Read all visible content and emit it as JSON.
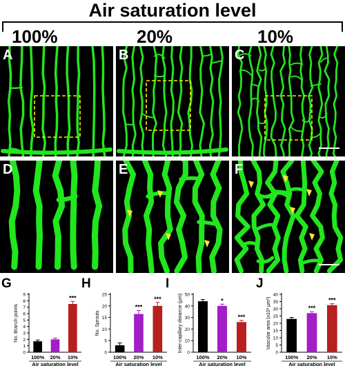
{
  "figure": {
    "title": "Air saturation level",
    "columns": [
      "100%",
      "20%",
      "10%"
    ],
    "image_panels": [
      "A",
      "B",
      "C",
      "D",
      "E",
      "F"
    ]
  },
  "colors": {
    "vessel": "#22e61e",
    "roi_box": "#ffee00",
    "arrowhead": "#ffe633",
    "bar_100": "#000000",
    "bar_20": "#a21ec6",
    "bar_10": "#b82020"
  },
  "chart_data": [
    {
      "panel": "G",
      "type": "bar",
      "categories": [
        "100%",
        "20%",
        "10%"
      ],
      "values": [
        1.7,
        2.0,
        7.5
      ],
      "errors": [
        0.2,
        0.2,
        0.4
      ],
      "significance": [
        "",
        "",
        "***"
      ],
      "ylabel": "No. Branch points",
      "xlabel": "Air saturation level",
      "ylim": [
        0,
        9
      ],
      "yticks": [
        0,
        1,
        2,
        3,
        4,
        5,
        6,
        7,
        8,
        9
      ]
    },
    {
      "panel": "H",
      "type": "bar",
      "categories": [
        "100%",
        "20%",
        "10%"
      ],
      "values": [
        3.0,
        16.5,
        20.0
      ],
      "errors": [
        1.0,
        1.5,
        1.5
      ],
      "significance": [
        "",
        "***",
        "***"
      ],
      "ylabel": "No. Sprouts",
      "xlabel": "Air saturation level",
      "ylim": [
        0,
        25
      ],
      "yticks": [
        0,
        5,
        10,
        15,
        20,
        25
      ]
    },
    {
      "panel": "I",
      "type": "bar",
      "categories": [
        "100%",
        "20%",
        "10%"
      ],
      "values": [
        44,
        40,
        26
      ],
      "errors": [
        1.5,
        1.5,
        1.5
      ],
      "significance": [
        "",
        "*",
        "***"
      ],
      "ylabel": "Inter-capillary distance (µm)",
      "xlabel": "Air saturation level",
      "ylim": [
        0,
        50
      ],
      "yticks": [
        0,
        10,
        20,
        30,
        40,
        50
      ]
    },
    {
      "panel": "J",
      "type": "bar",
      "categories": [
        "100%",
        "20%",
        "10%"
      ],
      "values": [
        23,
        27,
        32.5
      ],
      "errors": [
        1.0,
        1.0,
        1.0
      ],
      "significance": [
        "",
        "***",
        "***"
      ],
      "ylabel": "Vascular area (x10³ µm²)",
      "xlabel": "Air saturation level",
      "ylim": [
        0,
        40
      ],
      "yticks": [
        0,
        5,
        10,
        15,
        20,
        25,
        30,
        35,
        40
      ]
    }
  ]
}
